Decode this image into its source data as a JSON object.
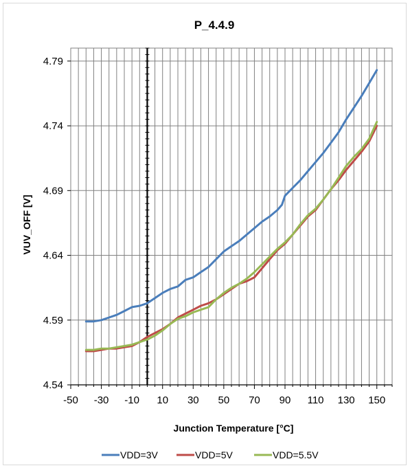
{
  "chart_data": {
    "type": "line",
    "title": "P_4.4.9",
    "xlabel": "Junction Temperature [°C]",
    "ylabel": "VUV_OFF [V]",
    "xlim": [
      -50,
      160
    ],
    "ylim": [
      4.54,
      4.8
    ],
    "x_ticks": [
      -50,
      -30,
      -10,
      10,
      30,
      50,
      70,
      90,
      110,
      130,
      150
    ],
    "y_ticks": [
      4.54,
      4.59,
      4.64,
      4.69,
      4.74,
      4.79
    ],
    "y_tick_labels": [
      "4.54",
      "4.59",
      "4.64",
      "4.69",
      "4.74",
      "4.79"
    ],
    "grid": true,
    "x_minor_grid_step": 5,
    "y_axis_crosses_at": 0,
    "legend_position": "bottom",
    "series": [
      {
        "name": "VDD=3V",
        "color": "#4a7ebb",
        "x": [
          -40,
          -35,
          -30,
          -25,
          -20,
          -15,
          -10,
          -5,
          0,
          5,
          10,
          15,
          20,
          25,
          30,
          35,
          40,
          45,
          50,
          55,
          60,
          65,
          70,
          75,
          80,
          85,
          88,
          90,
          95,
          100,
          105,
          110,
          115,
          120,
          125,
          130,
          135,
          140,
          145,
          150
        ],
        "y": [
          4.589,
          4.589,
          4.59,
          4.592,
          4.594,
          4.597,
          4.6,
          4.601,
          4.603,
          4.607,
          4.611,
          4.614,
          4.616,
          4.621,
          4.623,
          4.627,
          4.631,
          4.637,
          4.643,
          4.647,
          4.651,
          4.656,
          4.661,
          4.666,
          4.67,
          4.675,
          4.679,
          4.686,
          4.692,
          4.698,
          4.705,
          4.712,
          4.719,
          4.727,
          4.735,
          4.745,
          4.754,
          4.763,
          4.773,
          4.783
        ]
      },
      {
        "name": "VDD=5V",
        "color": "#be4b48",
        "x": [
          -40,
          -35,
          -30,
          -25,
          -20,
          -15,
          -10,
          -5,
          0,
          5,
          10,
          15,
          20,
          25,
          30,
          35,
          40,
          45,
          50,
          55,
          60,
          65,
          70,
          75,
          80,
          85,
          90,
          95,
          100,
          105,
          110,
          115,
          120,
          125,
          130,
          135,
          140,
          145,
          150
        ],
        "y": [
          4.566,
          4.566,
          4.567,
          4.568,
          4.568,
          4.569,
          4.57,
          4.573,
          4.577,
          4.58,
          4.583,
          4.587,
          4.592,
          4.595,
          4.598,
          4.601,
          4.603,
          4.606,
          4.61,
          4.614,
          4.618,
          4.62,
          4.623,
          4.63,
          4.637,
          4.644,
          4.649,
          4.656,
          4.663,
          4.67,
          4.675,
          4.683,
          4.691,
          4.698,
          4.706,
          4.713,
          4.72,
          4.728,
          4.74
        ]
      },
      {
        "name": "VDD=5.5V",
        "color": "#98b954",
        "x": [
          -40,
          -35,
          -30,
          -25,
          -20,
          -15,
          -10,
          -5,
          0,
          5,
          10,
          15,
          20,
          25,
          30,
          35,
          40,
          45,
          50,
          55,
          60,
          65,
          70,
          75,
          80,
          85,
          90,
          95,
          100,
          105,
          110,
          115,
          120,
          125,
          130,
          135,
          140,
          145,
          150
        ],
        "y": [
          4.567,
          4.567,
          4.568,
          4.568,
          4.569,
          4.57,
          4.571,
          4.573,
          4.575,
          4.578,
          4.582,
          4.587,
          4.591,
          4.593,
          4.596,
          4.598,
          4.6,
          4.606,
          4.611,
          4.615,
          4.618,
          4.622,
          4.627,
          4.633,
          4.639,
          4.645,
          4.65,
          4.656,
          4.664,
          4.671,
          4.676,
          4.683,
          4.691,
          4.7,
          4.709,
          4.716,
          4.722,
          4.73,
          4.743
        ]
      }
    ]
  }
}
